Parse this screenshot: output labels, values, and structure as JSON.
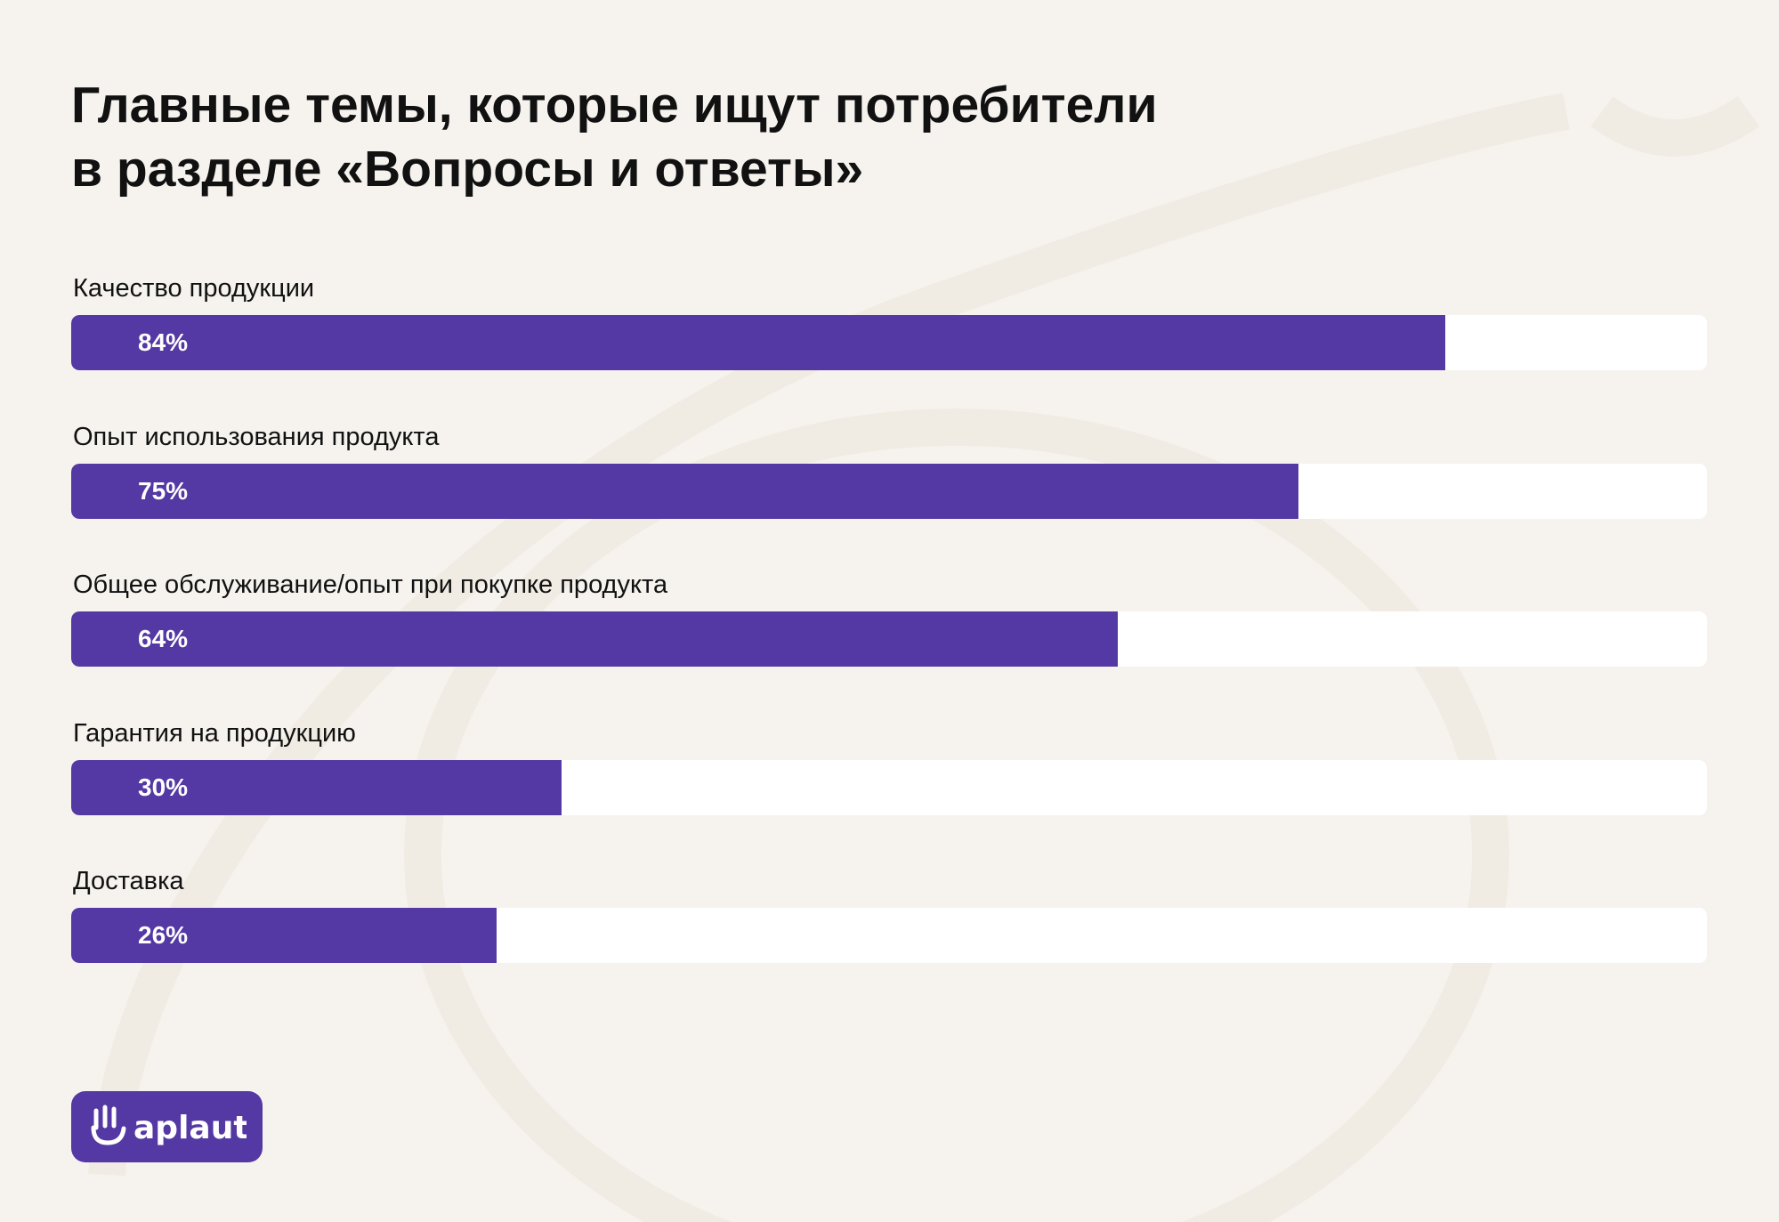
{
  "title": {
    "line1": "Главные темы, которые ищут потребители",
    "line2": "в разделе «Вопросы и ответы»"
  },
  "chart_data": {
    "type": "bar",
    "orientation": "horizontal",
    "categories": [
      "Качество продукции",
      "Опыт использования продукта",
      "Общее обслуживание/опыт при покупке продукта",
      "Гарантия на продукцию",
      "Доставка"
    ],
    "values": [
      84,
      75,
      64,
      30,
      26
    ],
    "value_labels": [
      "84%",
      "75%",
      "64%",
      "30%",
      "26%"
    ],
    "unit": "%",
    "xlim": [
      0,
      100
    ],
    "grid": false,
    "legend": "none",
    "colors": {
      "bar": "#5438a3",
      "track": "#ffffff",
      "background": "#f6f3ef"
    }
  },
  "logo": {
    "name": "aplaut",
    "icon": "hand-icon"
  }
}
